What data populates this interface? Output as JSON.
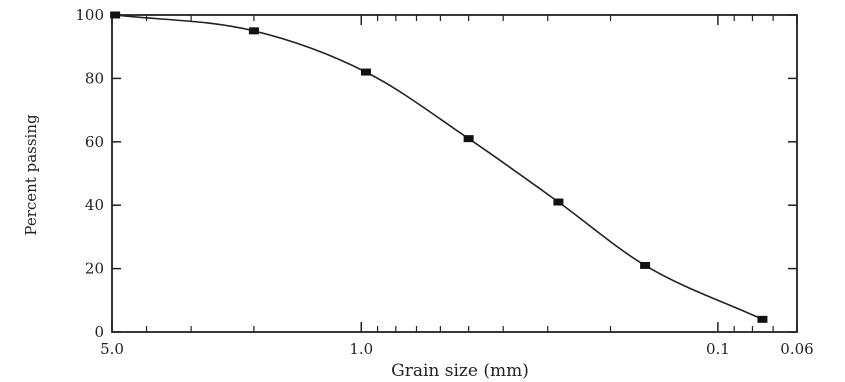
{
  "chart_data": {
    "type": "line",
    "title": "",
    "xlabel": "Grain size (mm)",
    "ylabel": "Percent passing",
    "x_scale": "log",
    "x_reversed": true,
    "xlim": [
      5.0,
      0.06
    ],
    "ylim": [
      0,
      100
    ],
    "x_ticks": [
      {
        "value": 5.0,
        "label": "5.0"
      },
      {
        "value": 1.0,
        "label": "1.0"
      },
      {
        "value": 0.1,
        "label": "0.1"
      },
      {
        "value": 0.06,
        "label": "0.06"
      }
    ],
    "y_ticks": [
      0,
      20,
      40,
      60,
      80,
      100
    ],
    "series": [
      {
        "x": [
          4.9,
          2.0,
          0.97,
          0.5,
          0.28,
          0.16,
          0.075
        ],
        "y": [
          100,
          95,
          82,
          61,
          41,
          21,
          4
        ],
        "marker": "square",
        "color": "#111111"
      }
    ],
    "grid": false,
    "legend": "none"
  }
}
